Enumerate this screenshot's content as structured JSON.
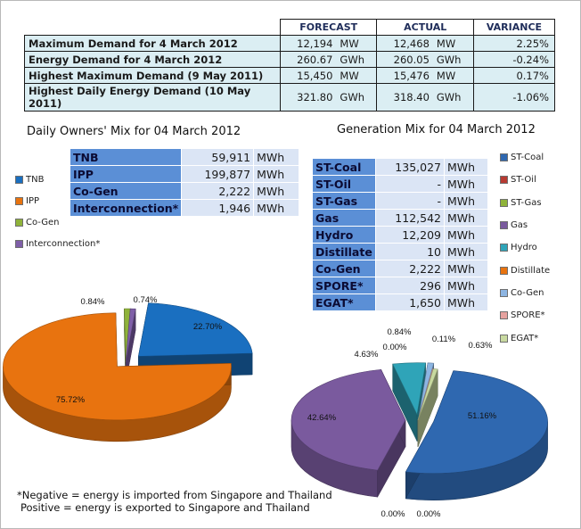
{
  "summary": {
    "headers": [
      "FORECAST",
      "ACTUAL",
      "VARIANCE"
    ],
    "rows": [
      {
        "label": "Maximum Demand for 4 March 2012",
        "forecast": "12,194",
        "forecast_unit": "MW",
        "actual": "12,468",
        "actual_unit": "MW",
        "variance": "2.25%"
      },
      {
        "label": "Energy Demand for 4 March 2012",
        "forecast": "260.67",
        "forecast_unit": "GWh",
        "actual": "260.05",
        "actual_unit": "GWh",
        "variance": "-0.24%"
      },
      {
        "label": "Highest Maximum Demand (9 May 2011)",
        "forecast": "15,450",
        "forecast_unit": "MW",
        "actual": "15,476",
        "actual_unit": "MW",
        "variance": "0.17%"
      },
      {
        "label": "Highest Daily Energy Demand (10 May 2011)",
        "forecast": "321.80",
        "forecast_unit": "GWh",
        "actual": "318.40",
        "actual_unit": "GWh",
        "variance": "-1.06%"
      }
    ]
  },
  "owners_mix": {
    "title": "Daily Owners' Mix for 04 March 2012",
    "unit": "MWh",
    "rows": [
      {
        "name": "TNB",
        "value": "59,911"
      },
      {
        "name": "IPP",
        "value": "199,877"
      },
      {
        "name": "Co-Gen",
        "value": "2,222"
      },
      {
        "name": "Interconnection*",
        "value": "1,946"
      }
    ],
    "legend": [
      "TNB",
      "IPP",
      "Co-Gen",
      "Interconnection*"
    ]
  },
  "generation_mix": {
    "title": "Generation Mix for 04 March 2012",
    "unit": "MWh",
    "rows": [
      {
        "name": "ST-Coal",
        "value": "135,027"
      },
      {
        "name": "ST-Oil",
        "value": "-"
      },
      {
        "name": "ST-Gas",
        "value": "-"
      },
      {
        "name": "Gas",
        "value": "112,542"
      },
      {
        "name": "Hydro",
        "value": "12,209"
      },
      {
        "name": "Distillate",
        "value": "10"
      },
      {
        "name": "Co-Gen",
        "value": "2,222"
      },
      {
        "name": "SPORE*",
        "value": "296"
      },
      {
        "name": "EGAT*",
        "value": "1,650"
      }
    ],
    "legend": [
      "ST-Coal",
      "ST-Oil",
      "ST-Gas",
      "Gas",
      "Hydro",
      "Distillate",
      "Co-Gen",
      "SPORE*",
      "EGAT*"
    ]
  },
  "chart_data": [
    {
      "type": "pie",
      "title": "Daily Owners' Mix for 04 March 2012",
      "categories": [
        "TNB",
        "IPP",
        "Co-Gen",
        "Interconnection*"
      ],
      "values": [
        22.7,
        75.72,
        0.84,
        0.74
      ],
      "labels": [
        "22.70%",
        "75.72%",
        "0.84%",
        "0.74%"
      ],
      "colors": [
        "#1a6fc0",
        "#e8730f",
        "#8fb33a",
        "#7f5fa8"
      ],
      "legend_position": "left"
    },
    {
      "type": "pie",
      "title": "Generation Mix for 04 March 2012",
      "categories": [
        "ST-Coal",
        "ST-Oil",
        "ST-Gas",
        "Gas",
        "Hydro",
        "Distillate",
        "Co-Gen",
        "SPORE*",
        "EGAT*"
      ],
      "values": [
        51.16,
        0.0,
        0.0,
        42.64,
        4.63,
        0.0,
        0.84,
        0.11,
        0.63
      ],
      "labels": [
        "51.16%",
        "0.00%",
        "0.00%",
        "42.64%",
        "4.63%",
        "0.00%",
        "0.84%",
        "0.11%",
        "0.63%"
      ],
      "colors": [
        "#2f68b0",
        "#b73a32",
        "#8fb33a",
        "#7a5a9e",
        "#2fa4b8",
        "#e8730f",
        "#8db5e2",
        "#e6a29f",
        "#c8d9a0"
      ],
      "legend_position": "right"
    }
  ],
  "footnote": {
    "line1": "*Negative = energy is imported from Singapore and Thailand",
    "line2": "Positive = energy is exported to Singapore and Thailand"
  }
}
